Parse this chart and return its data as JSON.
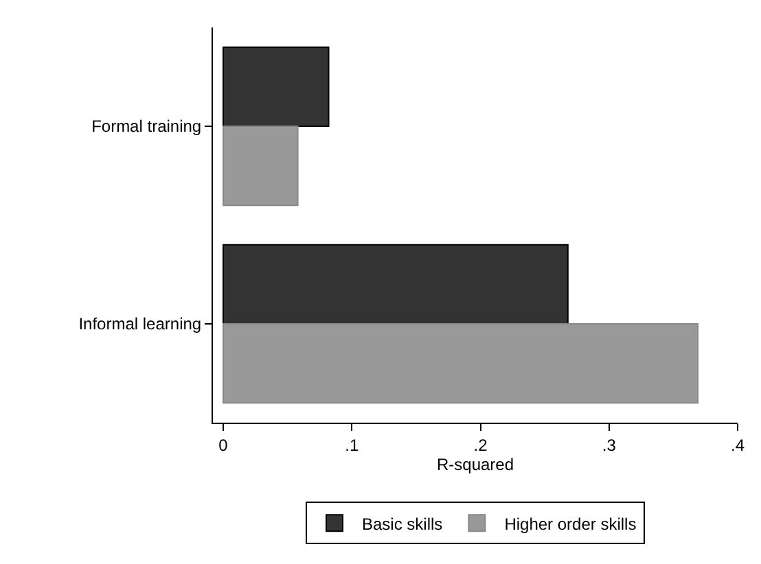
{
  "chart_data": {
    "type": "bar",
    "orientation": "horizontal",
    "xlabel": "R-squared",
    "categories": [
      "Formal training",
      "Informal learning"
    ],
    "series": [
      {
        "name": "Basic skills",
        "color": "#333333",
        "values": [
          0.082,
          0.268
        ]
      },
      {
        "name": "Higher order skills",
        "color": "#999999",
        "values": [
          0.058,
          0.369
        ]
      }
    ],
    "xlim": [
      -0.008,
      0.4
    ],
    "xticks": [
      0,
      {
        "value": 0.1,
        "label": ".1"
      },
      {
        "value": 0.2,
        "label": ".2"
      },
      {
        "value": 0.3,
        "label": ".3"
      },
      {
        "value": 0.4,
        "label": ".4"
      }
    ],
    "grid": false,
    "legend": "bottom"
  }
}
